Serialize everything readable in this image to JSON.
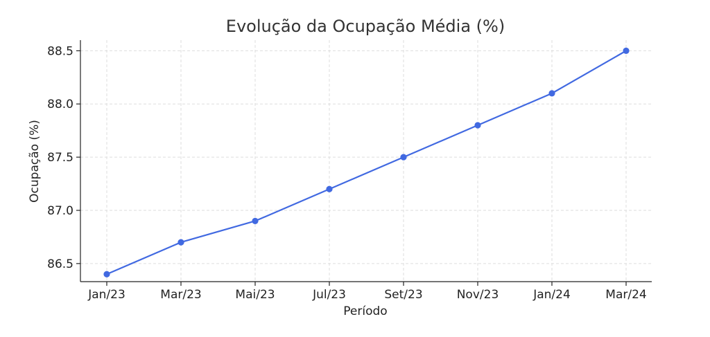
{
  "chart_data": {
    "type": "line",
    "title": "Evolução da Ocupação Média (%)",
    "xlabel": "Período",
    "ylabel": "Ocupação (%)",
    "categories": [
      "Jan/23",
      "Mar/23",
      "Mai/23",
      "Jul/23",
      "Set/23",
      "Nov/23",
      "Jan/24",
      "Mar/24"
    ],
    "series": [
      {
        "values": [
          86.4,
          86.7,
          86.9,
          87.2,
          87.5,
          87.8,
          88.1,
          88.5
        ]
      }
    ],
    "yticks": [
      "86.5",
      "87.0",
      "87.5",
      "88.0",
      "88.5"
    ],
    "ylim": [
      86.33,
      88.6
    ],
    "grid": true,
    "colors": {
      "line": "#4169e1",
      "grid": "#dddddd",
      "axis": "#222222"
    }
  }
}
